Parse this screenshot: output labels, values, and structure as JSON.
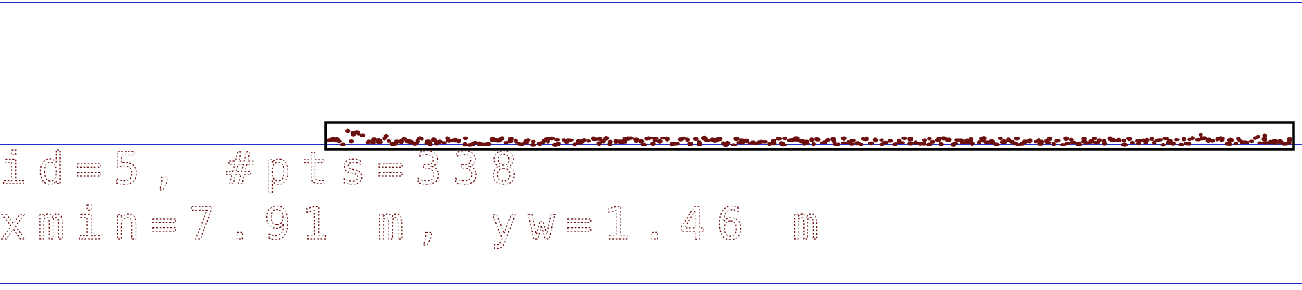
{
  "colors": {
    "frame_lines": "#1f2fc9",
    "points": "#6b0f0f",
    "bounding_box": "#000000",
    "text": "#6b0f0f"
  },
  "labels": {
    "line1": "id=5, #pts=338",
    "line2": "xmin=7.91 m, yw=1.46 m"
  },
  "chart_data": {
    "type": "scatter",
    "id": 5,
    "point_count": 338,
    "xmin_m": 7.91,
    "yw_m": 1.46,
    "grid": false,
    "legend": "none"
  }
}
